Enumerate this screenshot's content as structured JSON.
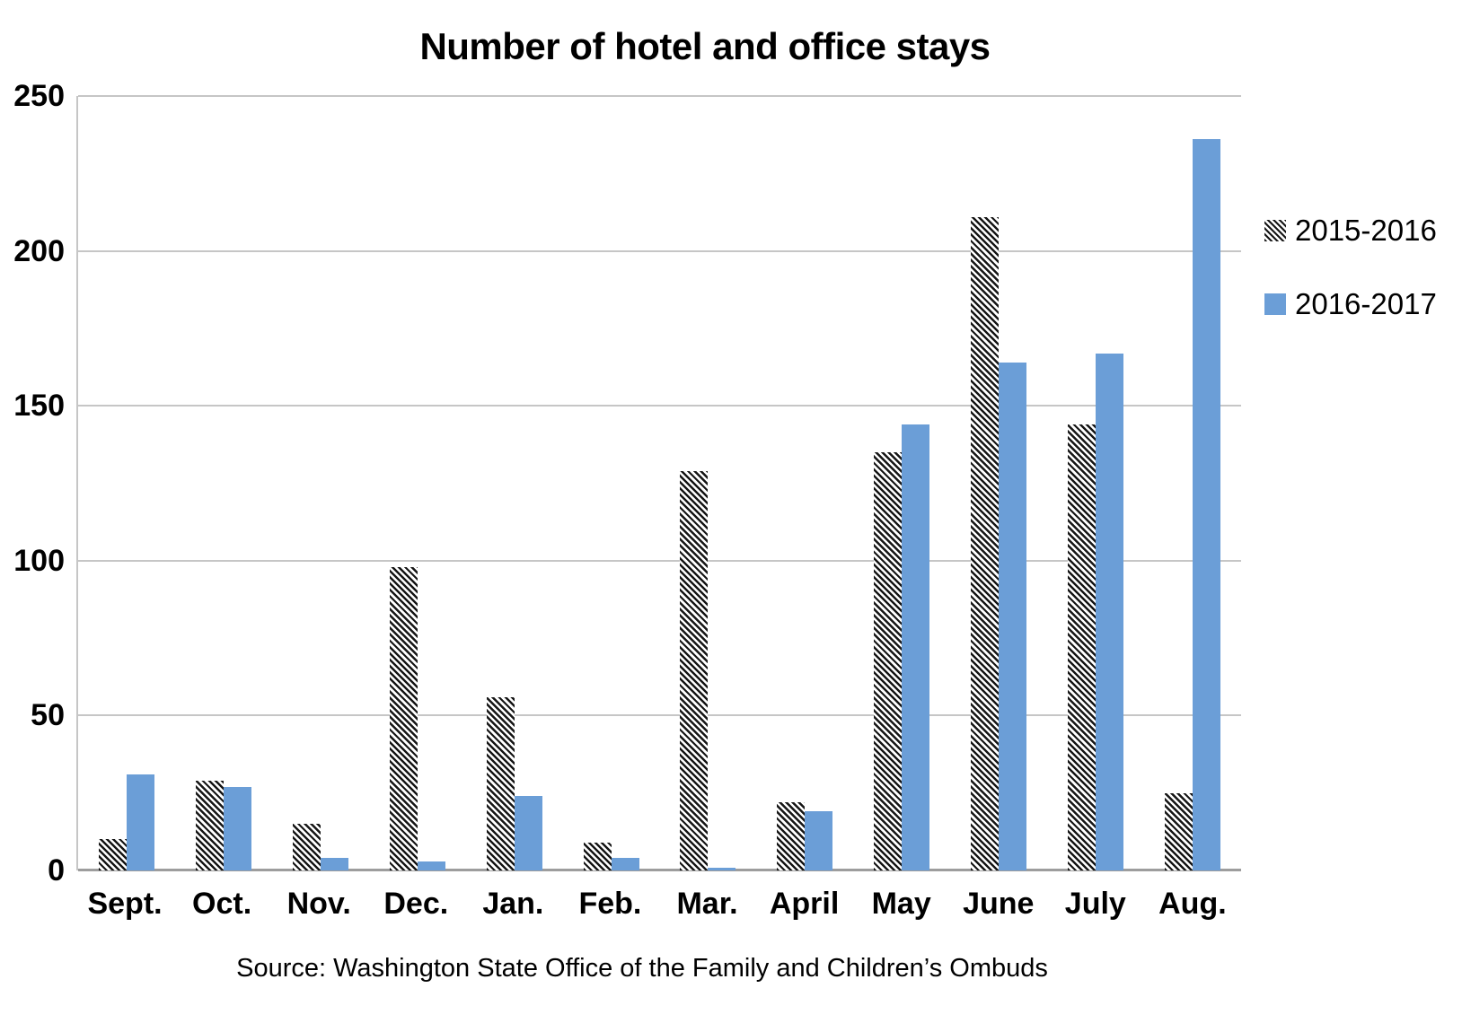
{
  "title": "Number of hotel and office stays",
  "source": "Source: Washington State Office of the Family and Children’s Ombuds",
  "legend": {
    "items": [
      {
        "label": "2015-2016",
        "swatch": "hatched"
      },
      {
        "label": "2016-2017",
        "swatch": "solid"
      }
    ]
  },
  "colors": {
    "series_2016_2017": "#6b9ed7",
    "hatch": "#161616",
    "gridline": "#c6c6c6",
    "baseline": "#9d9d9d",
    "text": "#000000"
  },
  "chart_data": {
    "type": "bar",
    "title": "Number of hotel and office stays",
    "categories": [
      "Sept.",
      "Oct.",
      "Nov.",
      "Dec.",
      "Jan.",
      "Feb.",
      "Mar.",
      "April",
      "May",
      "June",
      "July",
      "Aug."
    ],
    "series": [
      {
        "name": "2015-2016",
        "style": "hatched",
        "values": [
          10,
          29,
          15,
          98,
          56,
          9,
          129,
          22,
          135,
          211,
          144,
          25
        ]
      },
      {
        "name": "2016-2017",
        "style": "solid",
        "color": "#6b9ed7",
        "values": [
          31,
          27,
          4,
          3,
          24,
          4,
          1,
          19,
          144,
          164,
          167,
          236
        ]
      }
    ],
    "xlabel": "",
    "ylabel": "",
    "ylim": [
      0,
      250
    ],
    "yticks": [
      0,
      50,
      100,
      150,
      200,
      250
    ],
    "grid": true,
    "legend_position": "right",
    "annotation": "Source: Washington State Office of the Family and Children’s Ombuds"
  }
}
